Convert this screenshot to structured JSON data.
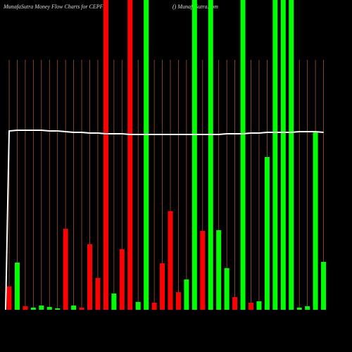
{
  "chart_data": {
    "type": "bar",
    "title": "MunafaSutra  Money Flow  Charts for CEPF",
    "subtitle": "() MunafaSutra.com",
    "categories": [
      null,
      null,
      null,
      null,
      null,
      null,
      null,
      null,
      null,
      null,
      null,
      null,
      null,
      null,
      null,
      null,
      null,
      null,
      null,
      null,
      null,
      null,
      null,
      null,
      null,
      null,
      null,
      null,
      null,
      null,
      null,
      null,
      null,
      null,
      null,
      null,
      null,
      null,
      null,
      null
    ],
    "values": [
      33,
      67,
      5,
      3,
      6,
      4,
      2,
      115,
      6,
      3,
      93,
      45,
      440,
      23,
      86,
      440,
      11,
      440,
      10,
      66,
      140,
      25,
      43,
      440,
      112,
      440,
      113,
      59,
      18,
      440,
      10,
      12,
      217,
      440,
      440,
      440,
      3,
      5,
      253,
      68
    ],
    "colors": [
      "#ff0000",
      "#00ff00",
      "#ff0000",
      "#00ff00",
      "#00ff00",
      "#00ff00",
      "#00ff00",
      "#ff0000",
      "#00ff00",
      "#ff0000",
      "#ff0000",
      "#ff0000",
      "#ff0000",
      "#00ff00",
      "#ff0000",
      "#ff0000",
      "#00ff00",
      "#00ff00",
      "#ff0000",
      "#ff0000",
      "#ff0000",
      "#ff0000",
      "#00ff00",
      "#00ff00",
      "#ff0000",
      "#00ff00",
      "#00ff00",
      "#00ff00",
      "#ff0000",
      "#00ff00",
      "#ff0000",
      "#00ff00",
      "#00ff00",
      "#00ff00",
      "#00ff00",
      "#00ff00",
      "#00ff00",
      "#00ff00",
      "#00ff00",
      "#00ff00"
    ],
    "line": [
      254,
      255,
      255,
      255,
      255,
      254,
      254,
      253,
      252,
      252,
      251,
      251,
      250,
      250,
      250,
      249,
      249,
      249,
      249,
      249,
      249,
      249,
      249,
      249,
      249,
      249,
      249,
      250,
      250,
      250,
      251,
      251,
      252,
      252,
      252,
      252,
      253,
      253,
      253,
      252
    ],
    "line_color": "#ffffff",
    "grid_color": "#a0522d",
    "ylim": [
      0,
      440
    ]
  }
}
